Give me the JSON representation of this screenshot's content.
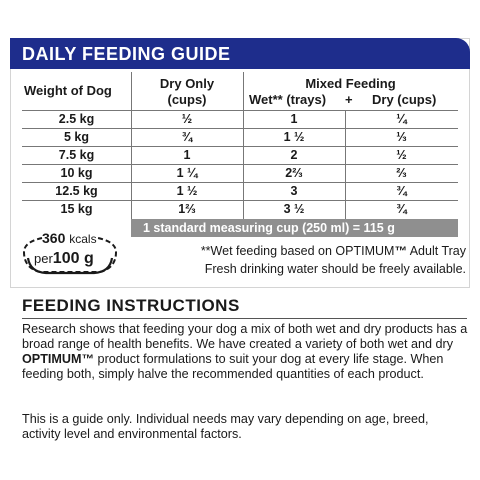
{
  "feeding_guide": {
    "title": "DAILY FEEDING GUIDE",
    "headers": {
      "weight": "Weight of Dog",
      "dry_only": "Dry Only",
      "dry_only_unit": "(cups)",
      "mixed": "Mixed Feeding",
      "wet": "Wet** (trays)",
      "plus": "+",
      "dry": "Dry (cups)"
    },
    "rows": [
      {
        "weight": "2.5 kg",
        "dry_only": "½",
        "wet": "1",
        "dry": "¼"
      },
      {
        "weight": "5 kg",
        "dry_only": "¾",
        "wet": "1 ½",
        "dry": "⅓"
      },
      {
        "weight": "7.5 kg",
        "dry_only": "1",
        "wet": "2",
        "dry": "½"
      },
      {
        "weight": "10 kg",
        "dry_only": "1 ¼",
        "wet": "2⅔",
        "dry": "⅔"
      },
      {
        "weight": "12.5 kg",
        "dry_only": "1 ½",
        "wet": "3",
        "dry": "¾"
      },
      {
        "weight": "15 kg",
        "dry_only": "1⅔",
        "wet": "3 ½",
        "dry": "¾"
      }
    ],
    "measure_note": "1 standard measuring cup (250 ml) = 115 g"
  },
  "energy_badge": {
    "kcal_value": "360",
    "kcal_unit": "kcals",
    "per_label": "per",
    "per_amount": "100 g"
  },
  "notes": {
    "wet_note_prefix": "**Wet feeding based on OPTIMUM",
    "wet_note_tm": "™",
    "wet_note_suffix": " Adult Tray",
    "water_note": "Fresh drinking water should be freely available."
  },
  "instructions": {
    "title": "FEEDING INSTRUCTIONS",
    "p1_a": "Research shows that feeding your dog a mix of both wet and dry products has a broad range of health benefits.  We have created a variety of both wet and dry ",
    "p1_brand": "OPTIMUM™",
    "p1_b": " product formulations to suit your dog at every life stage.  When feeding both, simply halve the recommended quantities of each product.",
    "p2": "This is a guide only. Individual needs may vary depending on age, breed, activity level and environmental factors."
  },
  "colors": {
    "header_bg": "#1e2d8c",
    "measure_bar_bg": "#8f8f8f"
  }
}
